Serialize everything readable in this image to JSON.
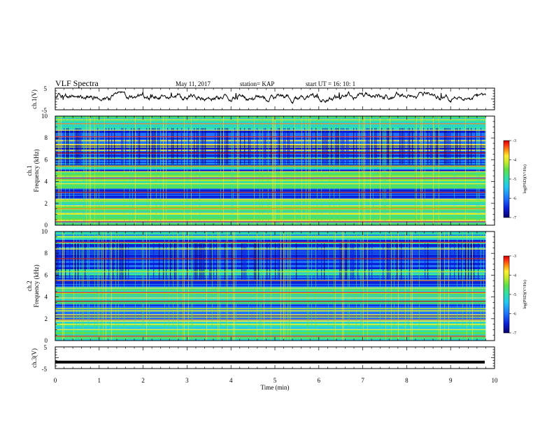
{
  "header": {
    "title": "VLF Spectra",
    "date": "May 11, 2017",
    "station": "station= KAP",
    "start": "start  UT =   16: 10: 1"
  },
  "colors": {
    "palette": [
      "#08006c",
      "#0a1fd8",
      "#1f73ff",
      "#22c8f0",
      "#33e0a0",
      "#5ee04a",
      "#c8ea2a",
      "#ffee30",
      "#ff8a10",
      "#ff2a14",
      "#c80000"
    ],
    "frame": "#000000"
  },
  "chart_data": [
    {
      "type": "line",
      "panel": "ch1",
      "ylabel": "ch.1(V)",
      "ylim": [
        -5,
        5
      ],
      "yticks": [
        "5",
        "-5"
      ],
      "xlim": [
        0,
        10
      ],
      "series": [
        {
          "values_note": "noisy waveform around ~0 to 2 V"
        }
      ]
    },
    {
      "type": "heatmap",
      "panel": "spec1",
      "ylabel_top": "ch.1",
      "ylabel": "Frequency (kHz)",
      "ylim": [
        0,
        10
      ],
      "yticks": [
        "0",
        "2",
        "4",
        "6",
        "8",
        "10"
      ],
      "xlim": [
        0,
        9.8
      ],
      "colorbar": {
        "label": "log(PSD)(V²/Hz)",
        "range": [
          -7,
          -3
        ],
        "ticks": [
          "-3",
          "-4",
          "-5",
          "-6",
          "-7"
        ]
      },
      "bands_khz": [
        0.3,
        1.0,
        1.5,
        2.2,
        3.0,
        3.8,
        4.3,
        4.9,
        5.4,
        6.1,
        6.6,
        7.4,
        8.1,
        8.7,
        9.3
      ],
      "quiet_bands_khz": [
        [
          2.4,
          3.4
        ],
        [
          5.5,
          8.8
        ],
        [
          5.0,
          5.2
        ]
      ]
    },
    {
      "type": "heatmap",
      "panel": "spec2",
      "ylabel_top": "ch.2",
      "ylabel": "Frequency (kHz)",
      "ylim": [
        0,
        10
      ],
      "yticks": [
        "0",
        "2",
        "4",
        "6",
        "8",
        "10"
      ],
      "xlim": [
        0,
        9.8
      ],
      "colorbar": {
        "label": "log(PSD)(V²/Hz)",
        "range": [
          -7,
          -3
        ],
        "ticks": [
          "-3",
          "-4",
          "-5",
          "-6",
          "-7"
        ]
      },
      "bands_khz": [
        0.4,
        1.0,
        1.9,
        2.7,
        3.6,
        3.9,
        4.4,
        4.8,
        5.5,
        6.3,
        7.5,
        8.4,
        9.0,
        9.5
      ],
      "quiet_bands_khz": [
        [
          2.0,
          3.4
        ],
        [
          6.6,
          9.8
        ],
        [
          5.0,
          6.0
        ]
      ]
    },
    {
      "type": "line",
      "panel": "ch3",
      "ylabel": "ch.3(V)",
      "ylim": [
        -5,
        5
      ],
      "yticks": [
        "5",
        "-5"
      ],
      "xlim": [
        0,
        10
      ],
      "xlabel": "Time  (min)",
      "xticks": [
        "0",
        "1",
        "2",
        "3",
        "4",
        "5",
        "6",
        "7",
        "8",
        "9",
        "10"
      ],
      "series": [
        {
          "values_note": "flat line at about -2 V"
        }
      ]
    }
  ]
}
